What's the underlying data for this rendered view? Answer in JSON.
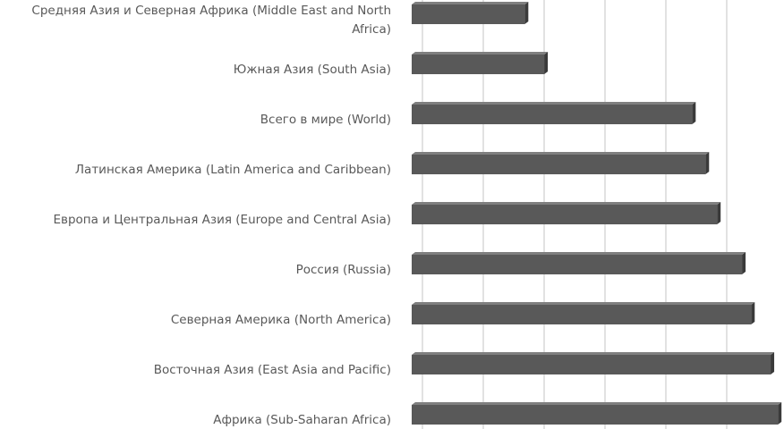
{
  "chart_data": {
    "type": "barh",
    "categories": [
      "Средняя Азия и Северная Африка (Middle East and North Africa)",
      "Южная Азия (South Asia)",
      "Всего в мире (World)",
      "Латинская Америка (Latin America and Caribbean)",
      "Европа и Центральная Азия (Europe and Central Asia)",
      "Россия (Russia)",
      "Северная Америка (North America)",
      "Восточная Азия (East Asia and Pacific)",
      "Африка (Sub-Saharan Africa)"
    ],
    "values": [
      17.4,
      20.6,
      44.9,
      47.1,
      49,
      53.1,
      54.6,
      57.8,
      59
    ],
    "color": "#595959",
    "xlim": [
      0,
      60
    ],
    "xticks": [
      0,
      10,
      20,
      30,
      40,
      50
    ],
    "grid": true
  }
}
